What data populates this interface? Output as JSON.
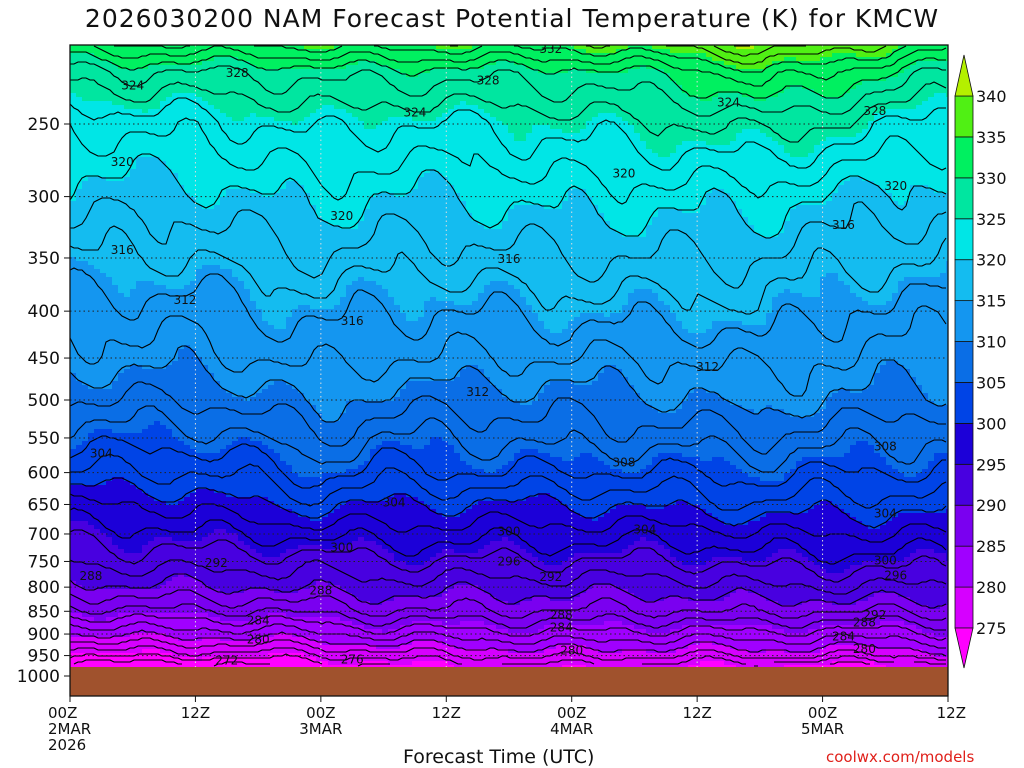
{
  "title": "2026030200 NAM Forecast Potential Temperature (K) for KMCW",
  "xlabel": "Forecast Time (UTC)",
  "credit": "coolwx.com/models",
  "chart_data": {
    "type": "heatmap",
    "title": "2026030200 NAM Forecast Potential Temperature (K) for KMCW",
    "xlabel": "Forecast Time (UTC)",
    "ylabel": "",
    "x_ticks": [
      {
        "hour": 0,
        "lines": [
          "00Z",
          "2MAR",
          "2026"
        ]
      },
      {
        "hour": 12,
        "lines": [
          "12Z"
        ]
      },
      {
        "hour": 24,
        "lines": [
          "00Z",
          "3MAR"
        ]
      },
      {
        "hour": 36,
        "lines": [
          "12Z"
        ]
      },
      {
        "hour": 48,
        "lines": [
          "00Z",
          "4MAR"
        ]
      },
      {
        "hour": 60,
        "lines": [
          "12Z"
        ]
      },
      {
        "hour": 72,
        "lines": [
          "00Z",
          "5MAR"
        ]
      },
      {
        "hour": 84,
        "lines": [
          "12Z"
        ]
      }
    ],
    "xlim": [
      0,
      84
    ],
    "y_ticks": [
      250,
      300,
      350,
      400,
      450,
      500,
      550,
      600,
      650,
      700,
      750,
      800,
      850,
      900,
      950,
      1000
    ],
    "ylim_hpa": [
      200,
      1040
    ],
    "y_scale": "log",
    "y_inverted": true,
    "grid": true,
    "ground_top_hpa": 975,
    "colorbar": {
      "labels": [
        275,
        280,
        285,
        290,
        295,
        300,
        305,
        310,
        315,
        320,
        325,
        330,
        335,
        340
      ],
      "bins": [
        {
          "lo": 270,
          "hi": 275,
          "color": "#ff00ff"
        },
        {
          "lo": 275,
          "hi": 280,
          "color": "#d600ff"
        },
        {
          "lo": 280,
          "hi": 285,
          "color": "#a000ff"
        },
        {
          "lo": 285,
          "hi": 290,
          "color": "#7a00f0"
        },
        {
          "lo": 290,
          "hi": 295,
          "color": "#4800e0"
        },
        {
          "lo": 295,
          "hi": 300,
          "color": "#1c00d8"
        },
        {
          "lo": 300,
          "hi": 305,
          "color": "#0044e6"
        },
        {
          "lo": 305,
          "hi": 310,
          "color": "#0a6ee6"
        },
        {
          "lo": 310,
          "hi": 315,
          "color": "#1496f0"
        },
        {
          "lo": 315,
          "hi": 320,
          "color": "#14bcf0"
        },
        {
          "lo": 320,
          "hi": 325,
          "color": "#00e6e6"
        },
        {
          "lo": 325,
          "hi": 330,
          "color": "#00e6a0"
        },
        {
          "lo": 330,
          "hi": 335,
          "color": "#00f060"
        },
        {
          "lo": 335,
          "hi": 340,
          "color": "#50f014"
        },
        {
          "lo": 340,
          "hi": 345,
          "color": "#b4f000"
        }
      ]
    },
    "ground_color": "#a0522d",
    "theta_profiles": [
      {
        "hour": 0,
        "pressures": [
          975,
          950,
          900,
          850,
          800,
          750,
          700,
          650,
          600,
          550,
          500,
          450,
          400,
          350,
          300,
          250,
          220,
          205
        ],
        "theta": [
          271,
          274,
          280,
          285,
          289,
          292,
          295,
          298,
          302,
          305,
          308,
          311,
          313,
          316,
          319,
          322,
          327,
          333
        ]
      },
      {
        "hour": 6,
        "pressures": [
          975,
          950,
          900,
          850,
          800,
          750,
          700,
          650,
          600,
          550,
          500,
          450,
          400,
          350,
          300,
          250,
          220,
          205
        ],
        "theta": [
          271,
          275,
          281,
          286,
          290,
          293,
          295,
          298,
          302,
          305,
          308,
          311,
          313,
          316,
          319,
          323,
          328,
          334
        ]
      },
      {
        "hour": 12,
        "pressures": [
          975,
          950,
          900,
          850,
          800,
          750,
          700,
          650,
          600,
          550,
          500,
          450,
          400,
          350,
          300,
          250,
          220,
          205
        ],
        "theta": [
          271,
          275,
          281,
          286,
          290,
          293,
          296,
          299,
          302,
          305,
          308,
          311,
          313,
          316,
          319,
          323,
          328,
          334
        ]
      },
      {
        "hour": 18,
        "pressures": [
          975,
          950,
          900,
          850,
          800,
          750,
          700,
          650,
          600,
          550,
          500,
          450,
          400,
          350,
          300,
          250,
          220,
          205
        ],
        "theta": [
          272,
          275,
          281,
          286,
          290,
          293,
          296,
          300,
          303,
          306,
          309,
          312,
          314,
          317,
          320,
          324,
          328,
          334
        ]
      },
      {
        "hour": 24,
        "pressures": [
          975,
          950,
          900,
          850,
          800,
          750,
          700,
          650,
          600,
          550,
          500,
          450,
          400,
          350,
          300,
          250,
          220,
          205
        ],
        "theta": [
          273,
          276,
          282,
          287,
          291,
          293,
          297,
          301,
          305,
          308,
          311,
          313,
          315,
          318,
          321,
          325,
          329,
          335
        ]
      },
      {
        "hour": 30,
        "pressures": [
          975,
          950,
          900,
          850,
          800,
          750,
          700,
          650,
          600,
          550,
          500,
          450,
          400,
          350,
          300,
          250,
          220,
          205
        ],
        "theta": [
          274,
          277,
          283,
          288,
          291,
          294,
          297,
          300,
          303,
          306,
          309,
          312,
          314,
          317,
          320,
          324,
          329,
          335
        ]
      },
      {
        "hour": 36,
        "pressures": [
          975,
          950,
          900,
          850,
          800,
          750,
          700,
          650,
          600,
          550,
          500,
          450,
          400,
          350,
          300,
          250,
          220,
          205
        ],
        "theta": [
          275,
          278,
          283,
          288,
          291,
          294,
          297,
          300,
          304,
          306,
          309,
          312,
          314,
          317,
          320,
          324,
          329,
          335
        ]
      },
      {
        "hour": 48,
        "pressures": [
          975,
          950,
          900,
          850,
          800,
          750,
          700,
          650,
          600,
          550,
          500,
          450,
          400,
          350,
          300,
          250,
          220,
          205
        ],
        "theta": [
          276,
          279,
          284,
          288,
          291,
          294,
          297,
          300,
          304,
          307,
          309,
          312,
          315,
          318,
          321,
          325,
          329,
          335
        ]
      },
      {
        "hour": 60,
        "pressures": [
          975,
          950,
          900,
          850,
          800,
          750,
          700,
          650,
          600,
          550,
          500,
          450,
          400,
          350,
          300,
          250,
          220,
          205
        ],
        "theta": [
          275,
          278,
          283,
          288,
          291,
          294,
          297,
          301,
          304,
          307,
          310,
          312,
          315,
          318,
          321,
          326,
          331,
          337
        ]
      },
      {
        "hour": 66,
        "pressures": [
          975,
          950,
          900,
          850,
          800,
          750,
          700,
          650,
          600,
          550,
          500,
          450,
          400,
          350,
          300,
          250,
          220,
          205
        ],
        "theta": [
          275,
          279,
          284,
          289,
          292,
          295,
          298,
          302,
          305,
          308,
          311,
          313,
          316,
          318,
          321,
          327,
          334,
          340
        ]
      },
      {
        "hour": 72,
        "pressures": [
          975,
          950,
          900,
          850,
          800,
          750,
          700,
          650,
          600,
          550,
          500,
          450,
          400,
          350,
          300,
          250,
          220,
          205
        ],
        "theta": [
          274,
          278,
          283,
          288,
          292,
          295,
          298,
          301,
          304,
          307,
          310,
          312,
          314,
          317,
          320,
          326,
          332,
          338
        ]
      },
      {
        "hour": 84,
        "pressures": [
          975,
          950,
          900,
          850,
          800,
          750,
          700,
          650,
          600,
          550,
          500,
          450,
          400,
          350,
          300,
          250,
          220,
          205
        ],
        "theta": [
          275,
          279,
          284,
          289,
          292,
          295,
          298,
          301,
          304,
          306,
          309,
          311,
          313,
          316,
          319,
          323,
          328,
          333
        ]
      }
    ],
    "contour_labels": [
      {
        "text": "332",
        "hour": 46,
        "hpa": 207
      },
      {
        "text": "328",
        "hour": 16,
        "hpa": 220
      },
      {
        "text": "328",
        "hour": 40,
        "hpa": 224
      },
      {
        "text": "328",
        "hour": 77,
        "hpa": 242
      },
      {
        "text": "324",
        "hour": 6,
        "hpa": 227
      },
      {
        "text": "324",
        "hour": 33,
        "hpa": 243
      },
      {
        "text": "324",
        "hour": 63,
        "hpa": 237
      },
      {
        "text": "320",
        "hour": 5,
        "hpa": 275
      },
      {
        "text": "320",
        "hour": 53,
        "hpa": 283
      },
      {
        "text": "320",
        "hour": 79,
        "hpa": 292
      },
      {
        "text": "320",
        "hour": 26,
        "hpa": 315
      },
      {
        "text": "316",
        "hour": 5,
        "hpa": 343
      },
      {
        "text": "316",
        "hour": 42,
        "hpa": 351
      },
      {
        "text": "316",
        "hour": 74,
        "hpa": 322
      },
      {
        "text": "316",
        "hour": 27,
        "hpa": 410
      },
      {
        "text": "312",
        "hour": 11,
        "hpa": 389
      },
      {
        "text": "312",
        "hour": 61,
        "hpa": 460
      },
      {
        "text": "312",
        "hour": 39,
        "hpa": 490
      },
      {
        "text": "308",
        "hour": 53,
        "hpa": 585
      },
      {
        "text": "308",
        "hour": 78,
        "hpa": 562
      },
      {
        "text": "304",
        "hour": 3,
        "hpa": 572
      },
      {
        "text": "304",
        "hour": 31,
        "hpa": 647
      },
      {
        "text": "304",
        "hour": 55,
        "hpa": 692
      },
      {
        "text": "304",
        "hour": 78,
        "hpa": 665
      },
      {
        "text": "300",
        "hour": 26,
        "hpa": 724
      },
      {
        "text": "300",
        "hour": 42,
        "hpa": 696
      },
      {
        "text": "300",
        "hour": 78,
        "hpa": 748
      },
      {
        "text": "296",
        "hour": 42,
        "hpa": 750
      },
      {
        "text": "296",
        "hour": 79,
        "hpa": 777
      },
      {
        "text": "292",
        "hour": 14,
        "hpa": 753
      },
      {
        "text": "292",
        "hour": 46,
        "hpa": 780
      },
      {
        "text": "292",
        "hour": 77,
        "hpa": 858
      },
      {
        "text": "288",
        "hour": 2,
        "hpa": 778
      },
      {
        "text": "288",
        "hour": 24,
        "hpa": 807
      },
      {
        "text": "288",
        "hour": 47,
        "hpa": 858
      },
      {
        "text": "288",
        "hour": 76,
        "hpa": 874
      },
      {
        "text": "284",
        "hour": 18,
        "hpa": 870
      },
      {
        "text": "284",
        "hour": 47,
        "hpa": 885
      },
      {
        "text": "284",
        "hour": 74,
        "hpa": 906
      },
      {
        "text": "280",
        "hour": 18,
        "hpa": 912
      },
      {
        "text": "280",
        "hour": 48,
        "hpa": 938
      },
      {
        "text": "280",
        "hour": 76,
        "hpa": 935
      },
      {
        "text": "276",
        "hour": 27,
        "hpa": 960
      },
      {
        "text": "272",
        "hour": 15,
        "hpa": 962
      }
    ]
  }
}
